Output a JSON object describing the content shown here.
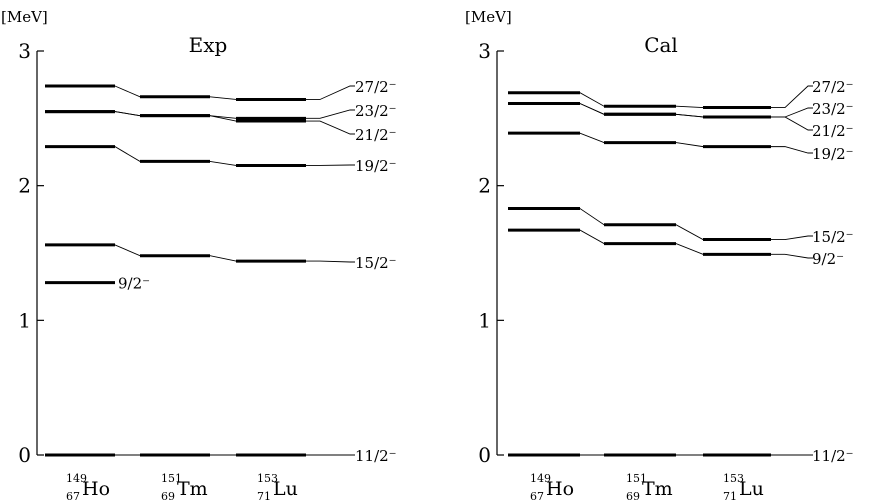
{
  "chart_data": [
    {
      "type": "level-scheme",
      "title": "Exp",
      "unit_label": "[MeV]",
      "yticks": [
        "0",
        "1",
        "2",
        "3"
      ],
      "ylim": [
        0,
        3
      ],
      "nuclei": [
        {
          "A": "149",
          "Z": "67",
          "symbol": "Ho"
        },
        {
          "A": "151",
          "Z": "69",
          "symbol": "Tm"
        },
        {
          "A": "153",
          "Z": "71",
          "symbol": "Lu"
        }
      ],
      "levels": [
        {
          "label": "11/2⁻",
          "energies": [
            0.0,
            0.0,
            0.0
          ],
          "label_side": "right"
        },
        {
          "label": "9/2⁻",
          "energies": [
            1.28
          ],
          "label_side": "inline"
        },
        {
          "label": "15/2⁻",
          "energies": [
            1.56,
            1.48,
            1.44
          ],
          "label_side": "right"
        },
        {
          "label": "19/2⁻",
          "energies": [
            2.29,
            2.18,
            2.15
          ],
          "label_side": "right"
        },
        {
          "label": "21/2⁻",
          "energies": [
            2.55,
            2.52,
            2.48
          ],
          "label_side": "right"
        },
        {
          "label": "23/2⁻",
          "energies": [
            2.55,
            2.52,
            2.5
          ],
          "label_side": "right"
        },
        {
          "label": "27/2⁻",
          "energies": [
            2.74,
            2.66,
            2.64
          ],
          "label_side": "right"
        }
      ]
    },
    {
      "type": "level-scheme",
      "title": "Cal",
      "unit_label": "[MeV]",
      "yticks": [
        "0",
        "1",
        "2",
        "3"
      ],
      "ylim": [
        0,
        3
      ],
      "nuclei": [
        {
          "A": "149",
          "Z": "67",
          "symbol": "Ho"
        },
        {
          "A": "151",
          "Z": "69",
          "symbol": "Tm"
        },
        {
          "A": "153",
          "Z": "71",
          "symbol": "Lu"
        }
      ],
      "levels": [
        {
          "label": "11/2⁻",
          "energies": [
            0.0,
            0.0,
            0.0
          ],
          "label_side": "right"
        },
        {
          "label": "9/2⁻",
          "energies": [
            1.67,
            1.57,
            1.49
          ],
          "label_side": "right"
        },
        {
          "label": "15/2⁻",
          "energies": [
            1.83,
            1.71,
            1.6
          ],
          "label_side": "right"
        },
        {
          "label": "19/2⁻",
          "energies": [
            2.39,
            2.32,
            2.29
          ],
          "label_side": "right"
        },
        {
          "label": "21/2⁻",
          "energies": [
            2.61,
            2.53,
            2.51
          ],
          "label_side": "right"
        },
        {
          "label": "23/2⁻",
          "energies": [
            2.61,
            2.53,
            2.51
          ],
          "label_side": "right"
        },
        {
          "label": "27/2⁻",
          "energies": [
            2.69,
            2.59,
            2.58
          ],
          "label_side": "right"
        }
      ]
    }
  ]
}
